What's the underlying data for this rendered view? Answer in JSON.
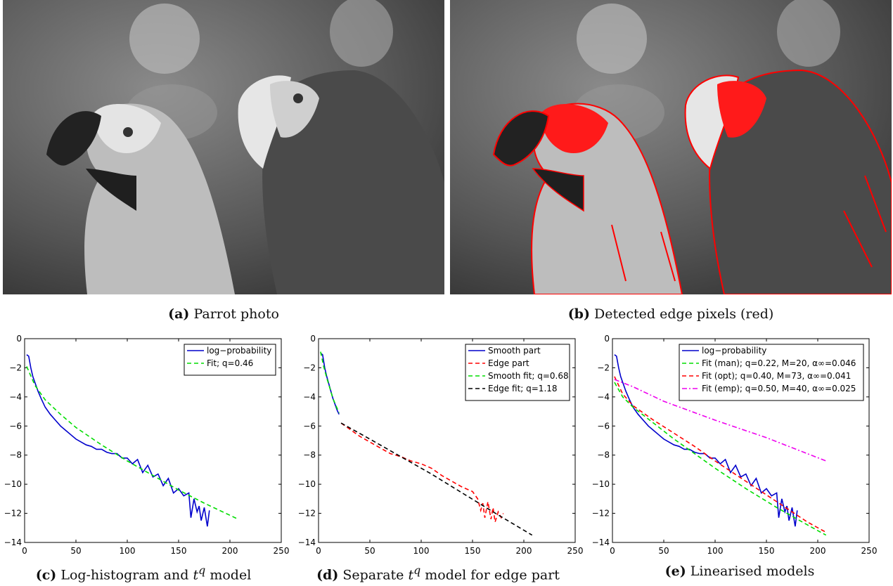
{
  "captions": {
    "a": {
      "label": "(a)",
      "text": "Parrot photo"
    },
    "b": {
      "label": "(b)",
      "text": "Detected edge pixels (red)"
    },
    "c": {
      "label": "(c)",
      "text_pre": "Log-histogram and ",
      "t": "t",
      "q": "q",
      "text_post": " model"
    },
    "d": {
      "label": "(d)",
      "text_pre": "Separate ",
      "t": "t",
      "q": "q",
      "text_post": " model for edge part"
    },
    "e": {
      "label": "(e)",
      "text": "Linearised models"
    }
  },
  "photos": {
    "a": {
      "name": "parrot-photo",
      "edge_overlay": false
    },
    "b": {
      "name": "detected-edges-photo",
      "edge_overlay": true,
      "overlay_color": "#ff0000"
    }
  },
  "chart_data": [
    {
      "type": "line",
      "xlim": [
        0,
        250
      ],
      "ylim": [
        -14,
        0
      ],
      "xticks": [
        0,
        50,
        100,
        150,
        200,
        250
      ],
      "yticks": [
        0,
        -2,
        -4,
        -6,
        -8,
        -10,
        -12,
        -14
      ],
      "series": [
        {
          "name": "log−probability",
          "color": "#0000cc",
          "dash": "solid",
          "x": [
            2,
            4,
            6,
            8,
            10,
            13,
            16,
            20,
            25,
            30,
            35,
            40,
            45,
            50,
            55,
            60,
            65,
            70,
            75,
            80,
            85,
            90,
            95,
            100,
            105,
            110,
            115,
            120,
            125,
            130,
            135,
            140,
            145,
            150,
            155,
            160,
            162,
            165,
            168,
            170,
            172,
            175,
            178,
            180
          ],
          "y": [
            -1.1,
            -1.2,
            -2.0,
            -2.6,
            -3.0,
            -3.6,
            -4.1,
            -4.7,
            -5.2,
            -5.6,
            -6.0,
            -6.3,
            -6.6,
            -6.9,
            -7.1,
            -7.3,
            -7.4,
            -7.6,
            -7.6,
            -7.8,
            -7.9,
            -7.9,
            -8.2,
            -8.2,
            -8.6,
            -8.3,
            -9.2,
            -8.7,
            -9.5,
            -9.3,
            -10.1,
            -9.6,
            -10.6,
            -10.3,
            -10.8,
            -10.6,
            -12.3,
            -11.0,
            -11.9,
            -11.5,
            -12.5,
            -11.6,
            -12.9,
            -11.8
          ]
        },
        {
          "name": "Fit; q=0.46",
          "color": "#00dd00",
          "dash": "dashed",
          "x": [
            2,
            10,
            20,
            35,
            50,
            75,
            100,
            125,
            150,
            175,
            208
          ],
          "y": [
            -1.9,
            -3.2,
            -4.2,
            -5.2,
            -6.1,
            -7.3,
            -8.4,
            -9.4,
            -10.4,
            -11.3,
            -12.4
          ]
        }
      ],
      "legend_position": "top-right"
    },
    {
      "type": "line",
      "xlim": [
        0,
        250
      ],
      "ylim": [
        -14,
        0
      ],
      "xticks": [
        0,
        50,
        100,
        150,
        200,
        250
      ],
      "yticks": [
        0,
        -2,
        -4,
        -6,
        -8,
        -10,
        -12,
        -14
      ],
      "series": [
        {
          "name": "Smooth part",
          "color": "#0000cc",
          "dash": "solid",
          "x": [
            2,
            4,
            6,
            8,
            10,
            12,
            14,
            16,
            18,
            20
          ],
          "y": [
            -1.0,
            -1.1,
            -2.0,
            -2.6,
            -3.1,
            -3.6,
            -4.1,
            -4.5,
            -4.9,
            -5.2
          ]
        },
        {
          "name": "Edge part",
          "color": "#ff0000",
          "dash": "dashed",
          "x": [
            22,
            30,
            40,
            50,
            60,
            70,
            80,
            90,
            100,
            110,
            120,
            130,
            140,
            150,
            155,
            158,
            160,
            162,
            165,
            168,
            170,
            172,
            175,
            178,
            180
          ],
          "y": [
            -5.8,
            -6.2,
            -6.7,
            -7.1,
            -7.5,
            -7.9,
            -8.1,
            -8.4,
            -8.6,
            -8.9,
            -9.4,
            -9.8,
            -10.2,
            -10.5,
            -11.0,
            -11.8,
            -11.3,
            -12.3,
            -11.2,
            -12.4,
            -11.6,
            -12.6,
            -11.9,
            -12.3,
            -12.0
          ]
        },
        {
          "name": "Smooth fit; q=0.68",
          "color": "#00dd00",
          "dash": "dashed",
          "x": [
            2,
            5,
            8,
            11,
            14,
            17,
            20
          ],
          "y": [
            -0.9,
            -1.9,
            -2.7,
            -3.4,
            -4.1,
            -4.6,
            -5.1
          ]
        },
        {
          "name": "Edge fit; q=1.18",
          "color": "#000000",
          "dash": "dashed",
          "x": [
            22,
            50,
            80,
            110,
            140,
            170,
            208
          ],
          "y": [
            -5.8,
            -6.9,
            -8.1,
            -9.3,
            -10.6,
            -11.9,
            -13.5
          ]
        }
      ],
      "legend_position": "top-right"
    },
    {
      "type": "line",
      "xlim": [
        0,
        250
      ],
      "ylim": [
        -14,
        0
      ],
      "xticks": [
        0,
        50,
        100,
        150,
        200,
        250
      ],
      "yticks": [
        0,
        -2,
        -4,
        -6,
        -8,
        -10,
        -12,
        -14
      ],
      "series": [
        {
          "name": "log−probability",
          "color": "#0000cc",
          "dash": "solid",
          "x": [
            2,
            4,
            6,
            8,
            10,
            13,
            16,
            20,
            25,
            30,
            35,
            40,
            45,
            50,
            55,
            60,
            65,
            70,
            75,
            80,
            85,
            90,
            95,
            100,
            105,
            110,
            115,
            120,
            125,
            130,
            135,
            140,
            145,
            150,
            155,
            160,
            162,
            165,
            168,
            170,
            172,
            175,
            178,
            180
          ],
          "y": [
            -1.1,
            -1.2,
            -2.0,
            -2.6,
            -3.0,
            -3.6,
            -4.1,
            -4.7,
            -5.2,
            -5.6,
            -6.0,
            -6.3,
            -6.6,
            -6.9,
            -7.1,
            -7.3,
            -7.4,
            -7.6,
            -7.6,
            -7.8,
            -7.9,
            -7.9,
            -8.2,
            -8.2,
            -8.6,
            -8.3,
            -9.2,
            -8.7,
            -9.5,
            -9.3,
            -10.1,
            -9.6,
            -10.6,
            -10.3,
            -10.8,
            -10.6,
            -12.3,
            -11.0,
            -11.9,
            -11.5,
            -12.5,
            -11.6,
            -12.9,
            -11.8
          ]
        },
        {
          "name": "Fit (man); q=0.22, M=20, α∞=0.046",
          "color": "#00dd00",
          "dash": "dashed",
          "x": [
            2,
            10,
            20,
            40,
            60,
            80,
            100,
            130,
            160,
            190,
            208
          ],
          "y": [
            -3.0,
            -4.0,
            -4.7,
            -5.8,
            -6.9,
            -7.9,
            -8.9,
            -10.3,
            -11.6,
            -12.8,
            -13.5
          ]
        },
        {
          "name": "Fit (opt); q=0.40, M=73, α∞=0.041",
          "color": "#ff0000",
          "dash": "dashed",
          "x": [
            2,
            10,
            20,
            40,
            60,
            80,
            100,
            130,
            160,
            190,
            208
          ],
          "y": [
            -2.6,
            -3.8,
            -4.6,
            -5.6,
            -6.5,
            -7.4,
            -8.4,
            -9.8,
            -11.2,
            -12.6,
            -13.3
          ]
        },
        {
          "name": "Fit (emp); q=0.50, M=40, α∞=0.025",
          "color": "#ee00ee",
          "dash": "dashdot",
          "x": [
            2,
            20,
            50,
            100,
            150,
            208
          ],
          "y": [
            -2.8,
            -3.3,
            -4.3,
            -5.6,
            -6.8,
            -8.4
          ]
        }
      ],
      "legend_position": "top-right"
    }
  ]
}
